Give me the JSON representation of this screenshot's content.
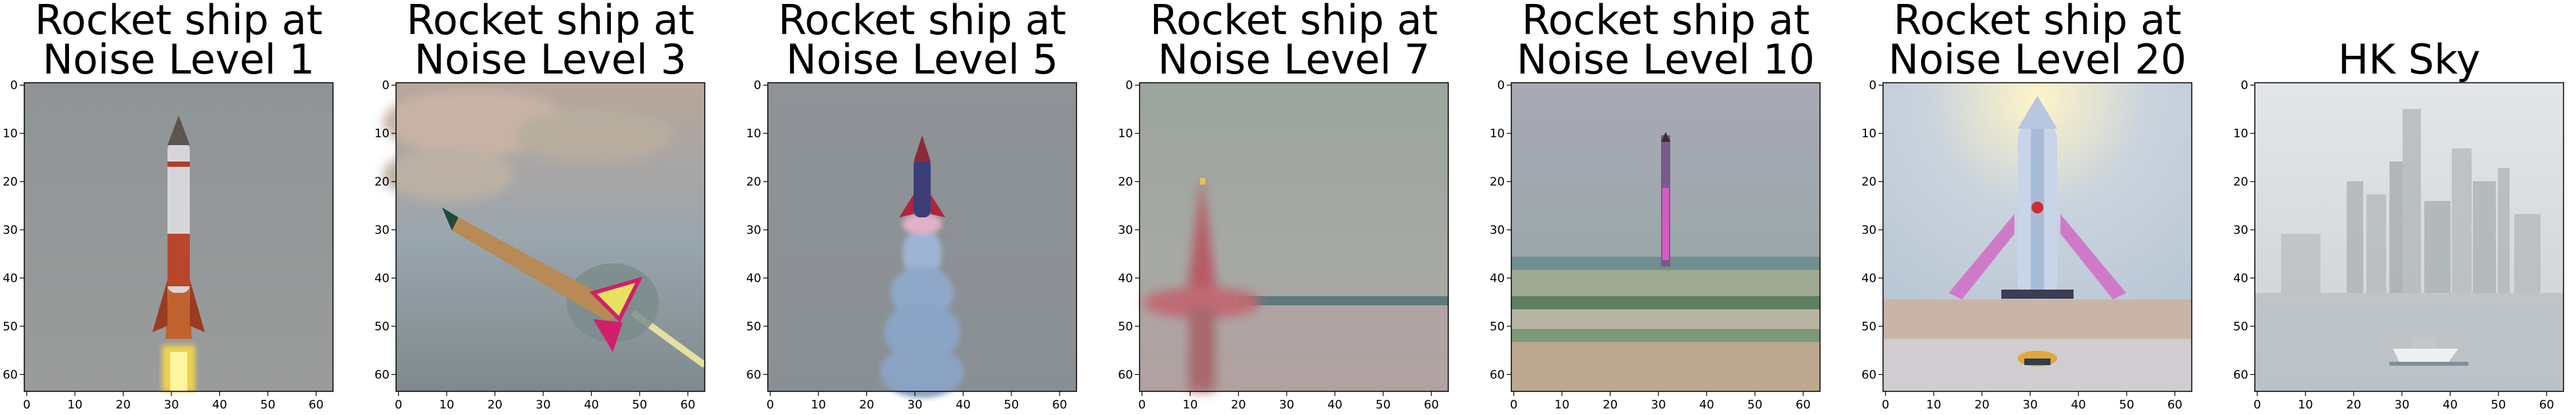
{
  "figure": {
    "panels": [
      {
        "title_line1": "Rocket ship at",
        "title_line2": "Noise Level 1",
        "kind": "rocket_up"
      },
      {
        "title_line1": "Rocket ship at",
        "title_line2": "Noise Level 3",
        "kind": "rocket_diag"
      },
      {
        "title_line1": "Rocket ship at",
        "title_line2": "Noise Level 5",
        "kind": "rocket_smoke"
      },
      {
        "title_line1": "Rocket ship at",
        "title_line2": "Noise Level 7",
        "kind": "sea_blur"
      },
      {
        "title_line1": "Rocket ship at",
        "title_line2": "Noise Level 10",
        "kind": "rocket_beach"
      },
      {
        "title_line1": "Rocket ship at",
        "title_line2": "Noise Level 20",
        "kind": "rocket_wings"
      },
      {
        "title_line1": "HK Sky",
        "title_line2": "",
        "kind": "skyline"
      }
    ],
    "x_ticks": [
      "0",
      "10",
      "20",
      "30",
      "40",
      "50",
      "60"
    ],
    "y_ticks": [
      "0",
      "10",
      "20",
      "30",
      "40",
      "50",
      "60"
    ],
    "colors": {
      "rocket_body": "#d8d8dc",
      "rocket_red": "#b43a28",
      "flame": "#f4e04a",
      "sky_gray": "#8e9599",
      "sky_blue": "#c3ccd6"
    }
  }
}
